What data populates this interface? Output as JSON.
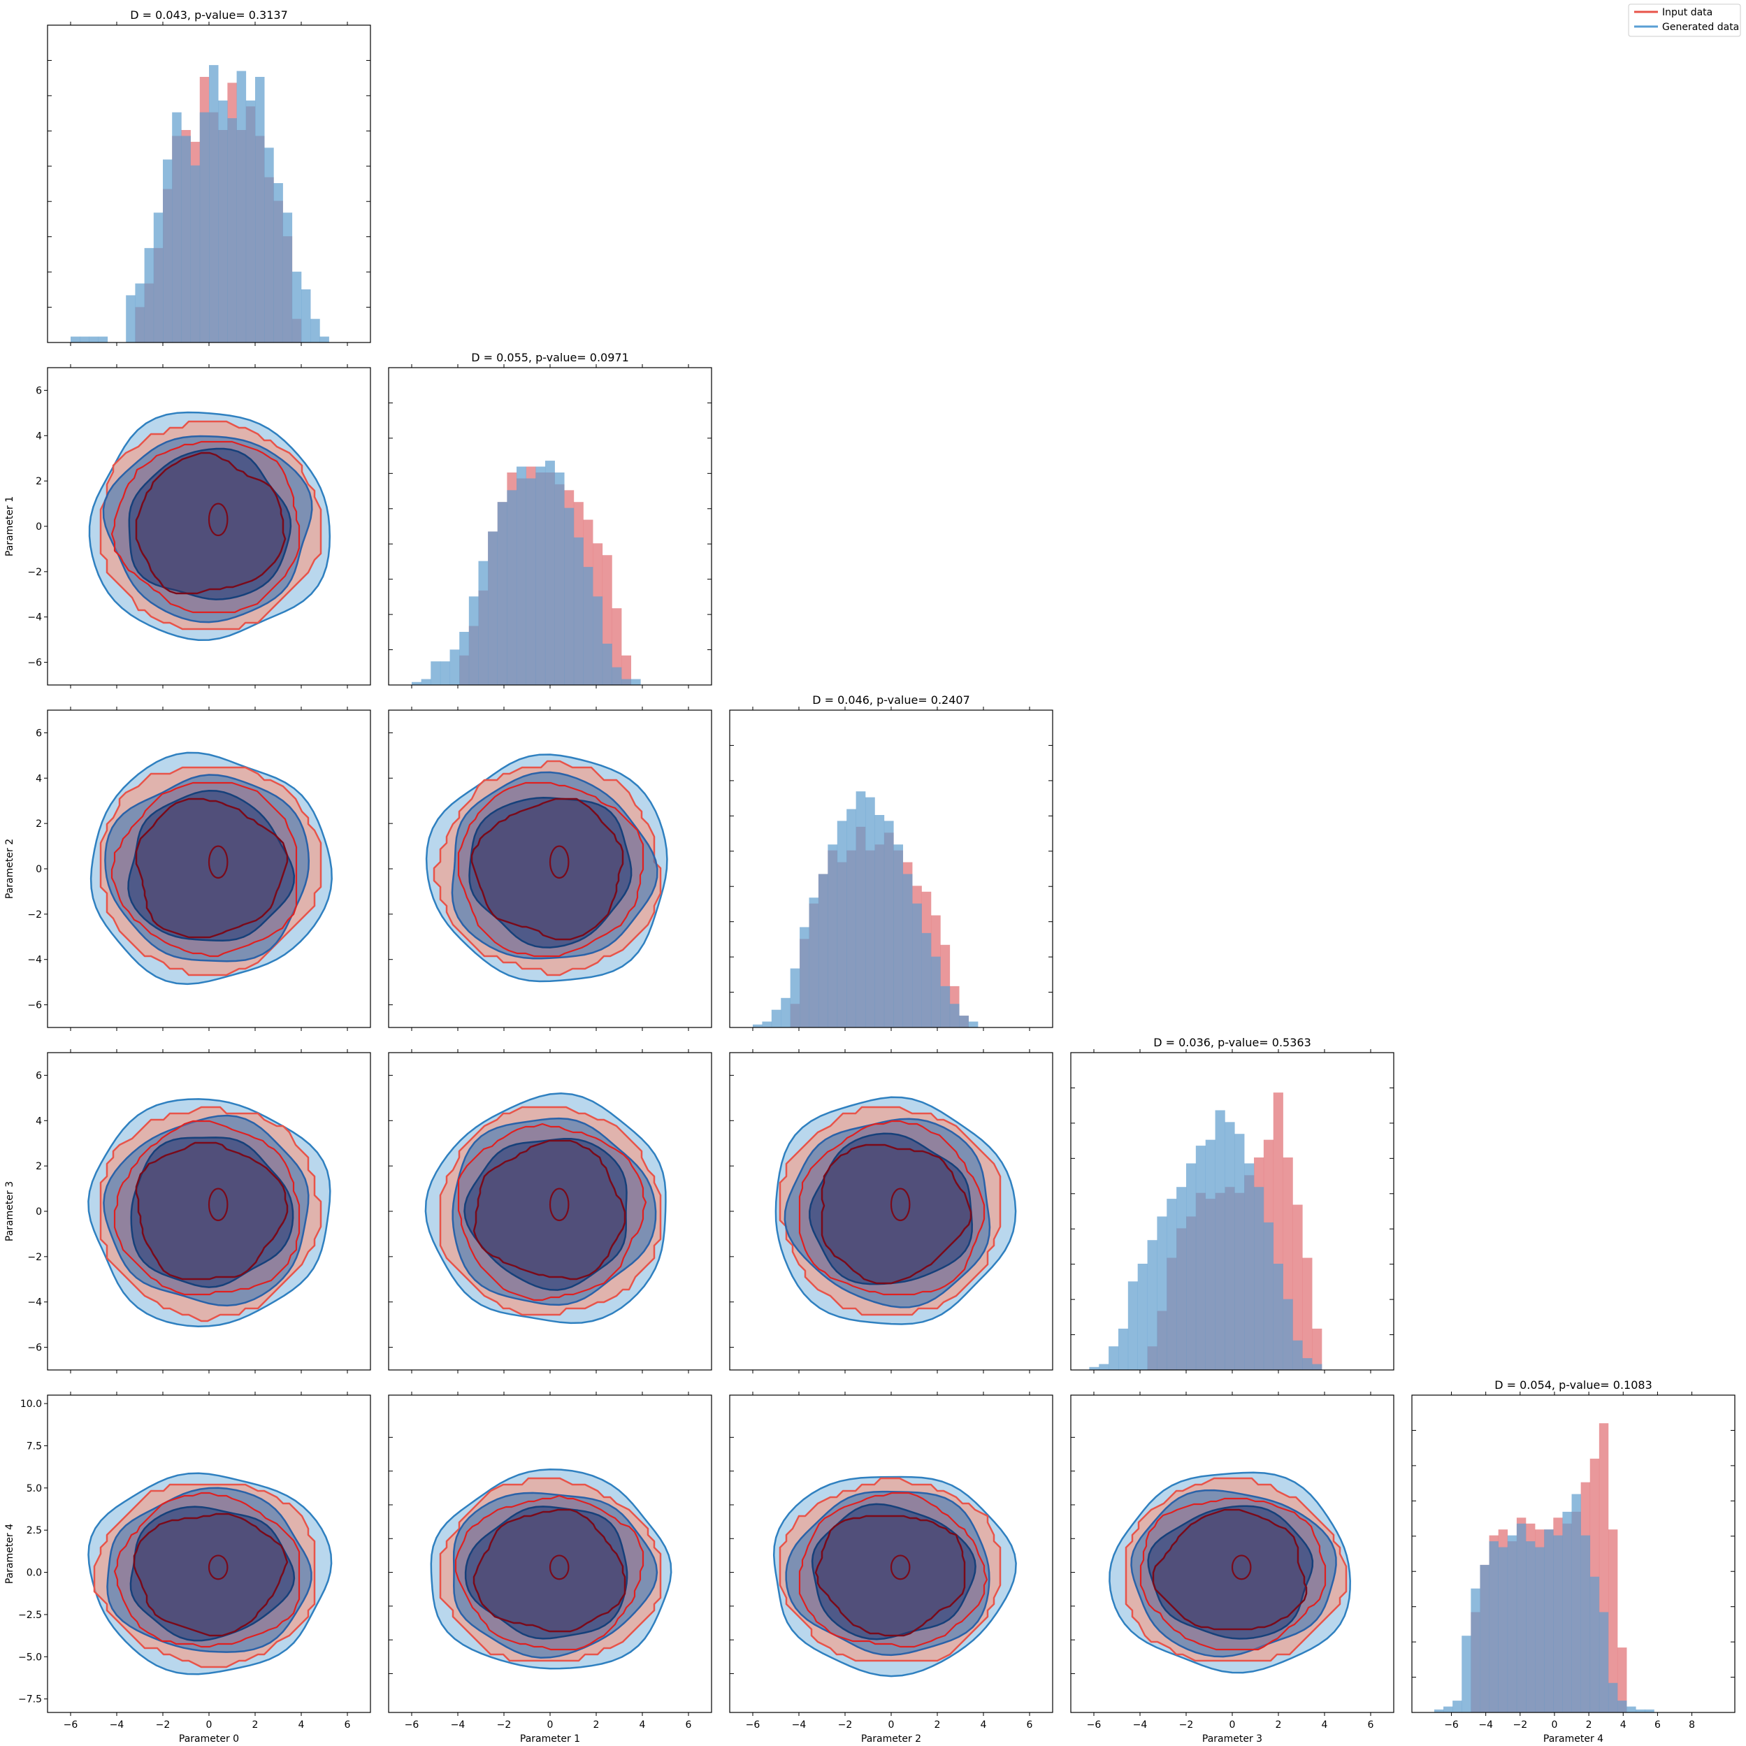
{
  "legend": {
    "entries": [
      {
        "label": "Input data",
        "color": "#e8544a"
      },
      {
        "label": "Generated data",
        "color": "#5a9fd4"
      }
    ],
    "placement": "top-right"
  },
  "colors": {
    "input_hist": "#e06c70",
    "generated_hist": "#5e9ccd",
    "input_line": "#e8544a",
    "input_fill": "#f4a08a",
    "input_inner": "#7a0a1a",
    "input_edge": "#e02020",
    "generated_line": "#2f80c0",
    "generated_fill": "#a8cde8",
    "generated_mid": "#3a78b8",
    "generated_inner": "#1a3a78"
  },
  "chart_data": {
    "type": "corner",
    "parameters": [
      "Parameter 0",
      "Parameter 1",
      "Parameter 2",
      "Parameter 3",
      "Parameter 4"
    ],
    "ranges": [
      [
        -7,
        7
      ],
      [
        -7,
        7
      ],
      [
        -7,
        7
      ],
      [
        -7,
        7
      ],
      [
        -8.3,
        10.5
      ]
    ],
    "ticks": [
      [
        "−6",
        "−4",
        "−2",
        "0",
        "2",
        "4",
        "6"
      ],
      [
        "−6",
        "−4",
        "−2",
        "0",
        "2",
        "4",
        "6"
      ],
      [
        "−6",
        "−4",
        "−2",
        "0",
        "2",
        "4",
        "6"
      ],
      [
        "−6",
        "−4",
        "−2",
        "0",
        "2",
        "4",
        "6"
      ],
      [
        "−6",
        "−4",
        "−2",
        "0",
        "2",
        "4",
        "6",
        "8"
      ]
    ],
    "tick_values": [
      [
        -6,
        -4,
        -2,
        0,
        2,
        4,
        6
      ],
      [
        -6,
        -4,
        -2,
        0,
        2,
        4,
        6
      ],
      [
        -6,
        -4,
        -2,
        0,
        2,
        4,
        6
      ],
      [
        -6,
        -4,
        -2,
        0,
        2,
        4,
        6
      ],
      [
        -6,
        -4,
        -2,
        0,
        2,
        4,
        6,
        8
      ]
    ],
    "y_ticks_param4": [
      "−7.5",
      "−5.0",
      "−2.5",
      "0.0",
      "2.5",
      "5.0",
      "7.5",
      "10.0"
    ],
    "y_tick_values_param4": [
      -7.5,
      -5,
      -2.5,
      0,
      2.5,
      5,
      7.5,
      10
    ],
    "diag_titles": [
      "D = 0.043, p-value= 0.3137",
      "D = 0.055, p-value= 0.0971",
      "D = 0.046, p-value= 0.2407",
      "D = 0.036, p-value= 0.5363",
      "D = 0.054, p-value= 0.1083"
    ],
    "hist": [
      {
        "range": [
          -6.0,
          6.0
        ],
        "input": [
          0,
          0,
          0,
          0,
          0,
          0,
          0,
          0.12,
          0.2,
          0.32,
          0.52,
          0.7,
          0.72,
          0.68,
          0.9,
          0.78,
          0.72,
          0.88,
          0.72,
          0.8,
          0.7,
          0.56,
          0.48,
          0.36,
          0.08,
          0,
          0,
          0,
          0,
          0
        ],
        "generated": [
          0.02,
          0.02,
          0.02,
          0.02,
          0,
          0,
          0.16,
          0.2,
          0.32,
          0.44,
          0.62,
          0.78,
          0.7,
          0.6,
          0.78,
          0.94,
          0.82,
          0.76,
          0.92,
          0.82,
          0.9,
          0.66,
          0.54,
          0.44,
          0.24,
          0.18,
          0.08,
          0.02,
          0,
          0
        ]
      },
      {
        "range": [
          -6.0,
          6.4
        ],
        "input": [
          0,
          0,
          0,
          0,
          0,
          0.1,
          0.2,
          0.32,
          0.52,
          0.62,
          0.72,
          0.7,
          0.74,
          0.72,
          0.72,
          0.68,
          0.66,
          0.62,
          0.56,
          0.48,
          0.44,
          0.26,
          0.1,
          0,
          0,
          0,
          0,
          0,
          0,
          0
        ],
        "generated": [
          0.01,
          0.02,
          0.08,
          0.08,
          0.12,
          0.18,
          0.3,
          0.42,
          0.52,
          0.62,
          0.66,
          0.74,
          0.7,
          0.74,
          0.76,
          0.72,
          0.6,
          0.5,
          0.4,
          0.3,
          0.14,
          0.06,
          0.02,
          0.02,
          0,
          0,
          0,
          0,
          0,
          0
        ]
      },
      {
        "range": [
          -6.0,
          6.2
        ],
        "input": [
          0,
          0,
          0,
          0,
          0.08,
          0.3,
          0.42,
          0.52,
          0.6,
          0.56,
          0.6,
          0.68,
          0.6,
          0.62,
          0.66,
          0.6,
          0.56,
          0.48,
          0.46,
          0.38,
          0.28,
          0.14,
          0.04,
          0,
          0,
          0,
          0,
          0,
          0,
          0
        ],
        "generated": [
          0.01,
          0.02,
          0.06,
          0.1,
          0.2,
          0.34,
          0.44,
          0.52,
          0.62,
          0.7,
          0.74,
          0.8,
          0.78,
          0.72,
          0.7,
          0.62,
          0.52,
          0.42,
          0.32,
          0.24,
          0.14,
          0.08,
          0.04,
          0.02,
          0,
          0,
          0,
          0,
          0,
          0
        ]
      },
      {
        "range": [
          -6.2,
          6.4
        ],
        "input": [
          0,
          0,
          0,
          0,
          0,
          0,
          0.08,
          0.2,
          0.38,
          0.48,
          0.52,
          0.6,
          0.58,
          0.6,
          0.62,
          0.6,
          0.66,
          0.72,
          0.78,
          0.94,
          0.72,
          0.56,
          0.38,
          0.14,
          0,
          0,
          0,
          0,
          0,
          0
        ],
        "generated": [
          0.01,
          0.02,
          0.08,
          0.14,
          0.3,
          0.36,
          0.44,
          0.52,
          0.58,
          0.62,
          0.7,
          0.76,
          0.78,
          0.88,
          0.84,
          0.8,
          0.7,
          0.62,
          0.5,
          0.36,
          0.24,
          0.1,
          0.04,
          0.02,
          0,
          0,
          0,
          0,
          0,
          0
        ]
      },
      {
        "range": [
          -7.0,
          9.0
        ],
        "input": [
          0,
          0,
          0,
          0,
          0.34,
          0.5,
          0.6,
          0.62,
          0.58,
          0.66,
          0.64,
          0.62,
          0.62,
          0.66,
          0.64,
          0.68,
          0.78,
          0.86,
          0.98,
          0.62,
          0.22,
          0,
          0,
          0,
          0,
          0,
          0,
          0,
          0,
          0
        ],
        "generated": [
          0.01,
          0.02,
          0.04,
          0.26,
          0.42,
          0.5,
          0.58,
          0.56,
          0.6,
          0.64,
          0.58,
          0.56,
          0.62,
          0.6,
          0.68,
          0.74,
          0.6,
          0.46,
          0.34,
          0.1,
          0.04,
          0.02,
          0.01,
          0.01,
          0,
          0,
          0,
          0,
          0,
          0
        ]
      }
    ],
    "contour_levels": [
      "outer",
      "middle",
      "inner"
    ],
    "grid": false,
    "legend_placement": "top-right"
  }
}
